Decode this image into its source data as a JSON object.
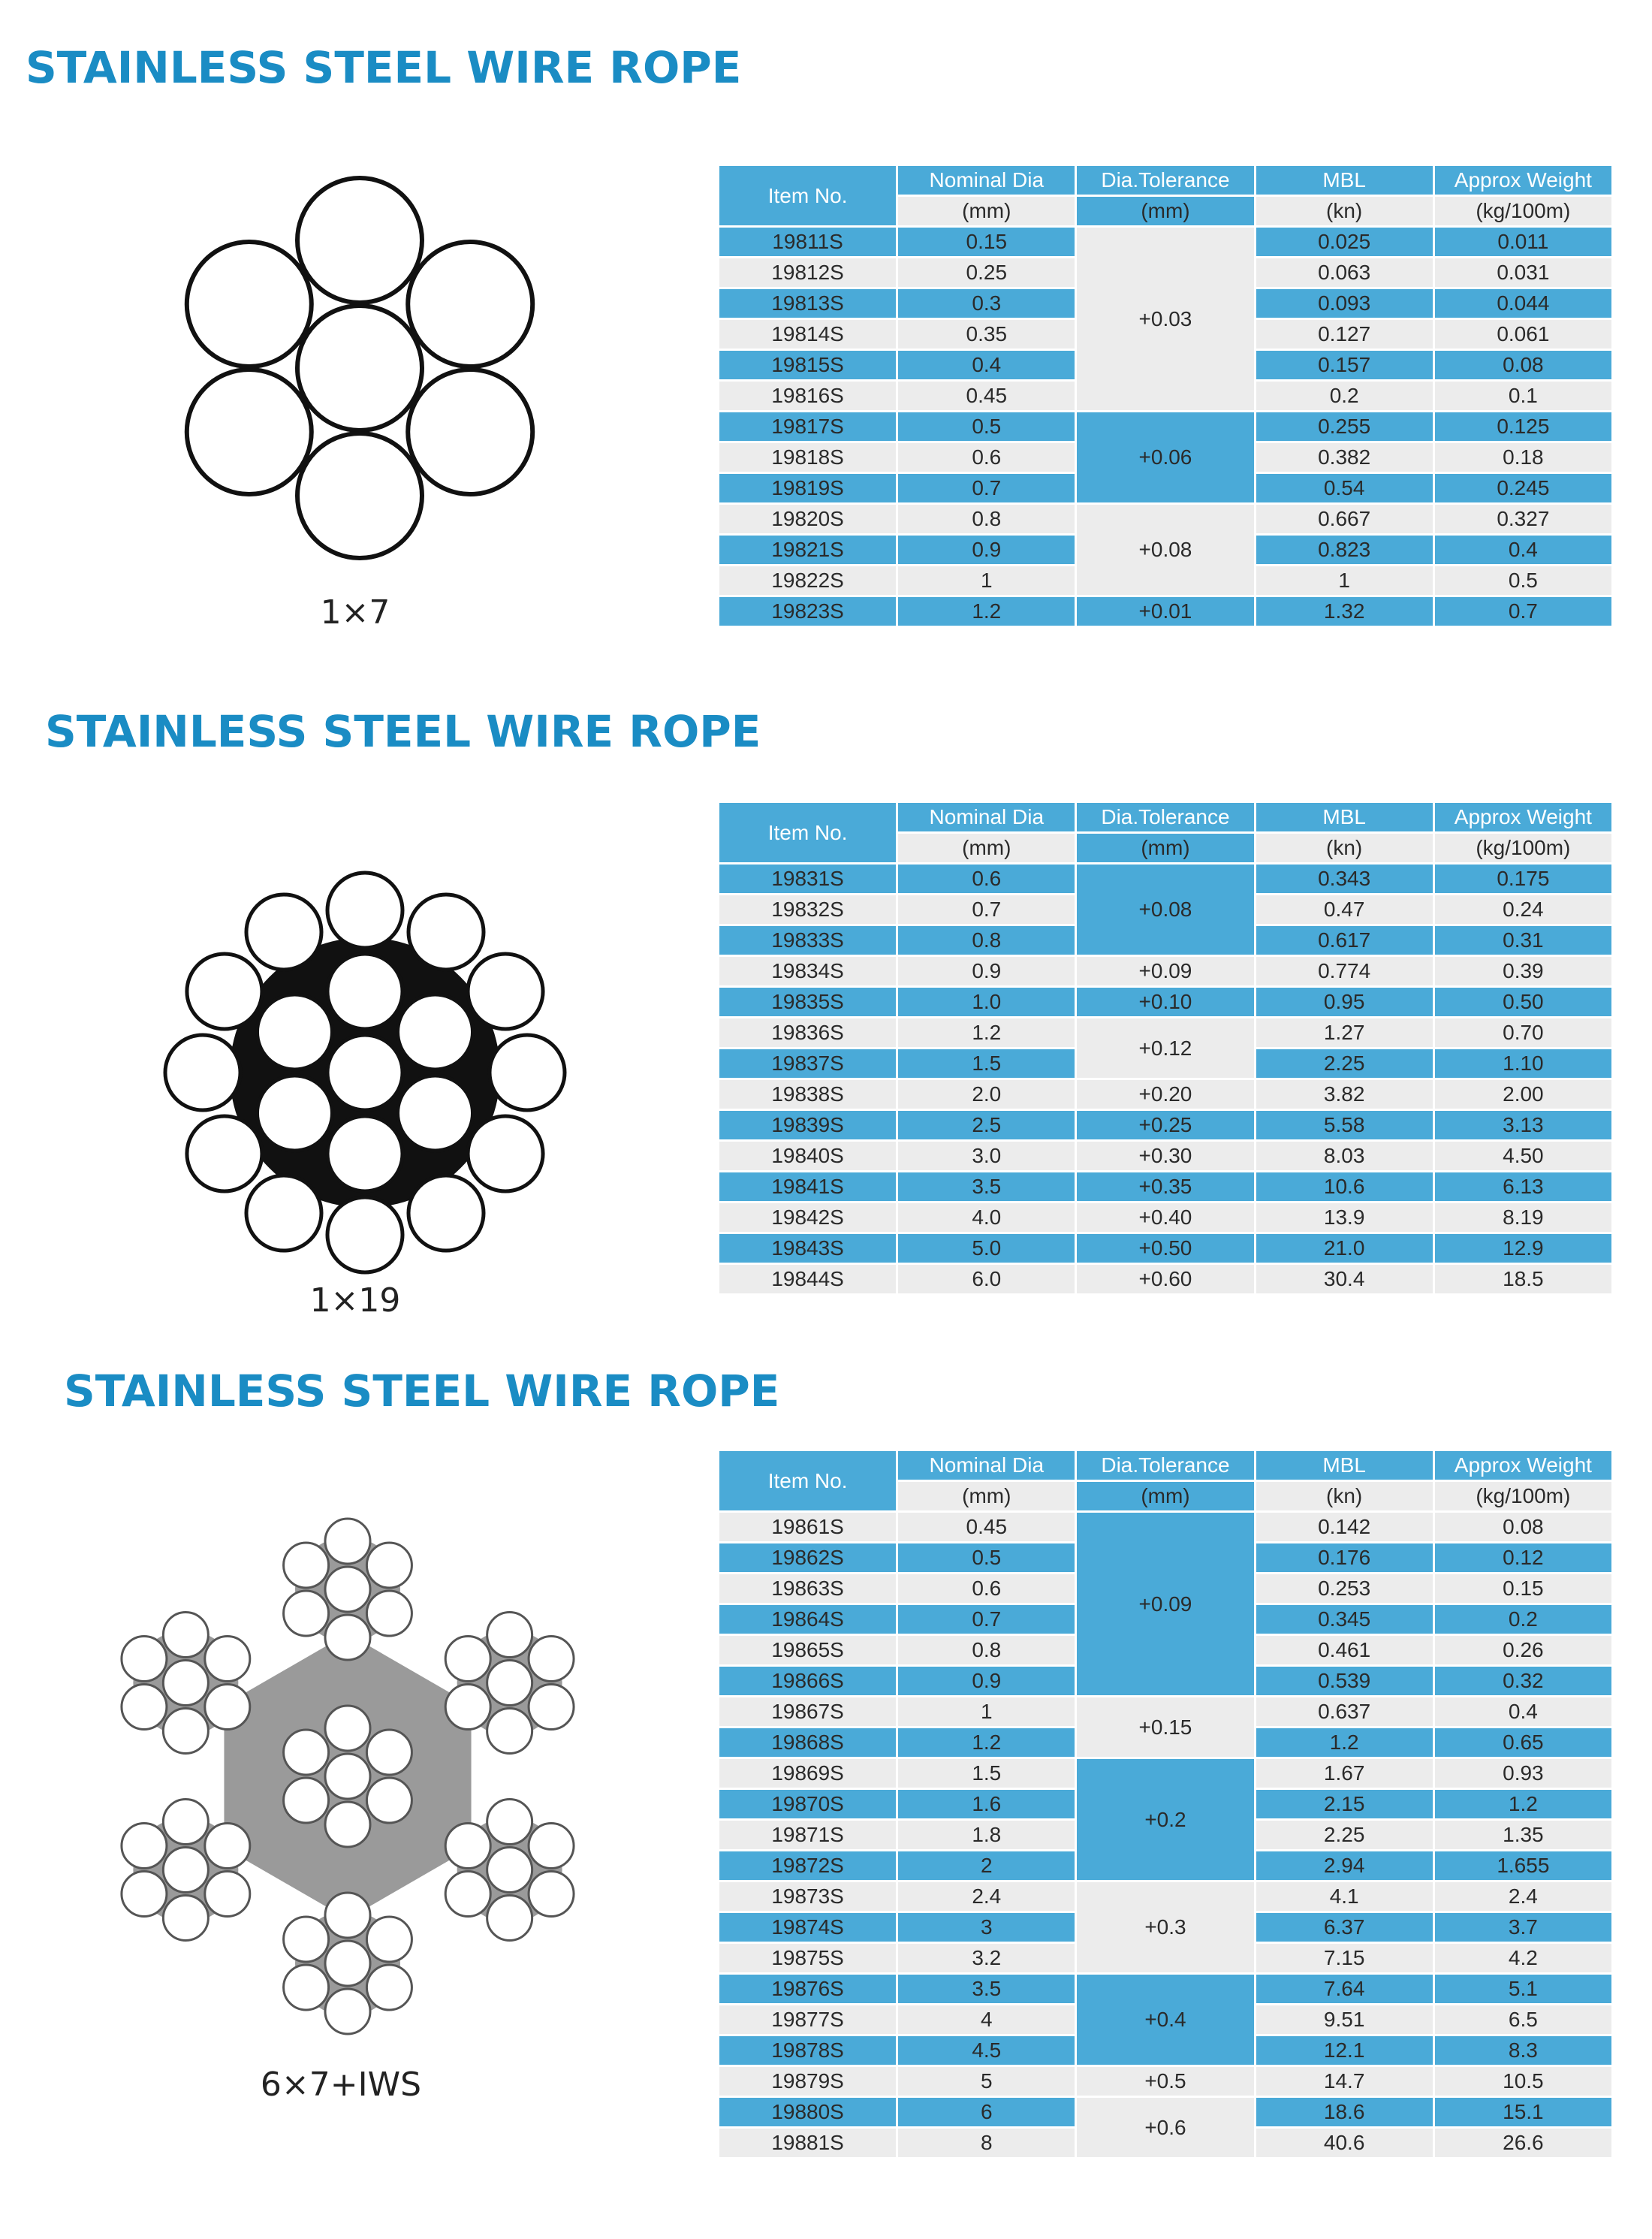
{
  "sections": [
    {
      "title": "STAINLESS STEEL WIRE ROPE",
      "diagram_label": "1×7",
      "first_row_shaded": true,
      "first_merged_group_shaded": false,
      "table": {
        "header": [
          "Item No.",
          "Nominal Dia",
          "Dia.Tolerance",
          "MBL",
          "Approx Weight"
        ],
        "units": [
          "(mm)",
          "(mm)",
          "(kn)",
          "(kg/100m)"
        ],
        "rows": [
          [
            "19811S",
            "0.15",
            "+0.03",
            "0.025",
            "0.011"
          ],
          [
            "19812S",
            "0.25",
            null,
            "0.063",
            "0.031"
          ],
          [
            "19813S",
            "0.3",
            null,
            "0.093",
            "0.044"
          ],
          [
            "19814S",
            "0.35",
            null,
            "0.127",
            "0.061"
          ],
          [
            "19815S",
            "0.4",
            null,
            "0.157",
            "0.08"
          ],
          [
            "19816S",
            "0.45",
            null,
            "0.2",
            "0.1"
          ],
          [
            "19817S",
            "0.5",
            "+0.06",
            "0.255",
            "0.125"
          ],
          [
            "19818S",
            "0.6",
            null,
            "0.382",
            "0.18"
          ],
          [
            "19819S",
            "0.7",
            null,
            "0.54",
            "0.245"
          ],
          [
            "19820S",
            "0.8",
            "+0.08",
            "0.667",
            "0.327"
          ],
          [
            "19821S",
            "0.9",
            null,
            "0.823",
            "0.4"
          ],
          [
            "19822S",
            "1",
            null,
            "1",
            "0.5"
          ],
          [
            "19823S",
            "1.2",
            "+0.01",
            "1.32",
            "0.7"
          ]
        ]
      }
    },
    {
      "title": "STAINLESS STEEL WIRE ROPE",
      "diagram_label": "1×19",
      "first_row_shaded": true,
      "first_merged_group_shaded": true,
      "table": {
        "header": [
          "Item No.",
          "Nominal Dia",
          "Dia.Tolerance",
          "MBL",
          "Approx Weight"
        ],
        "units": [
          "(mm)",
          "(mm)",
          "(kn)",
          "(kg/100m)"
        ],
        "rows": [
          [
            "19831S",
            "0.6",
            "+0.08",
            "0.343",
            "0.175"
          ],
          [
            "19832S",
            "0.7",
            null,
            "0.47",
            "0.24"
          ],
          [
            "19833S",
            "0.8",
            null,
            "0.617",
            "0.31"
          ],
          [
            "19834S",
            "0.9",
            "+0.09",
            "0.774",
            "0.39"
          ],
          [
            "19835S",
            "1.0",
            "+0.10",
            "0.95",
            "0.50"
          ],
          [
            "19836S",
            "1.2",
            "+0.12",
            "1.27",
            "0.70"
          ],
          [
            "19837S",
            "1.5",
            null,
            "2.25",
            "1.10"
          ],
          [
            "19838S",
            "2.0",
            "+0.20",
            "3.82",
            "2.00"
          ],
          [
            "19839S",
            "2.5",
            "+0.25",
            "5.58",
            "3.13"
          ],
          [
            "19840S",
            "3.0",
            "+0.30",
            "8.03",
            "4.50"
          ],
          [
            "19841S",
            "3.5",
            "+0.35",
            "10.6",
            "6.13"
          ],
          [
            "19842S",
            "4.0",
            "+0.40",
            "13.9",
            "8.19"
          ],
          [
            "19843S",
            "5.0",
            "+0.50",
            "21.0",
            "12.9"
          ],
          [
            "19844S",
            "6.0",
            "+0.60",
            "30.4",
            "18.5"
          ]
        ]
      }
    },
    {
      "title": "STAINLESS STEEL WIRE ROPE",
      "diagram_label": "6×7+IWS",
      "first_row_shaded": false,
      "first_merged_group_shaded": true,
      "table": {
        "header": [
          "Item No.",
          "Nominal Dia",
          "Dia.Tolerance",
          "MBL",
          "Approx Weight"
        ],
        "units": [
          "(mm)",
          "(mm)",
          "(kn)",
          "(kg/100m)"
        ],
        "rows": [
          [
            "19861S",
            "0.45",
            "+0.09",
            "0.142",
            "0.08"
          ],
          [
            "19862S",
            "0.5",
            null,
            "0.176",
            "0.12"
          ],
          [
            "19863S",
            "0.6",
            null,
            "0.253",
            "0.15"
          ],
          [
            "19864S",
            "0.7",
            null,
            "0.345",
            "0.2"
          ],
          [
            "19865S",
            "0.8",
            null,
            "0.461",
            "0.26"
          ],
          [
            "19866S",
            "0.9",
            null,
            "0.539",
            "0.32"
          ],
          [
            "19867S",
            "1",
            "+0.15",
            "0.637",
            "0.4"
          ],
          [
            "19868S",
            "1.2",
            null,
            "1.2",
            "0.65"
          ],
          [
            "19869S",
            "1.5",
            "+0.2",
            "1.67",
            "0.93"
          ],
          [
            "19870S",
            "1.6",
            null,
            "2.15",
            "1.2"
          ],
          [
            "19871S",
            "1.8",
            null,
            "2.25",
            "1.35"
          ],
          [
            "19872S",
            "2",
            null,
            "2.94",
            "1.655"
          ],
          [
            "19873S",
            "2.4",
            "+0.3",
            "4.1",
            "2.4"
          ],
          [
            "19874S",
            "3",
            null,
            "6.37",
            "3.7"
          ],
          [
            "19875S",
            "3.2",
            null,
            "7.15",
            "4.2"
          ],
          [
            "19876S",
            "3.5",
            "+0.4",
            "7.64",
            "5.1"
          ],
          [
            "19877S",
            "4",
            null,
            "9.51",
            "6.5"
          ],
          [
            "19878S",
            "4.5",
            null,
            "12.1",
            "8.3"
          ],
          [
            "19879S",
            "5",
            "+0.5",
            "14.7",
            "10.5"
          ],
          [
            "19880S",
            "6",
            "+0.6",
            "18.6",
            "15.1"
          ],
          [
            "19881S",
            "8",
            null,
            "40.6",
            "26.6"
          ]
        ]
      }
    }
  ]
}
